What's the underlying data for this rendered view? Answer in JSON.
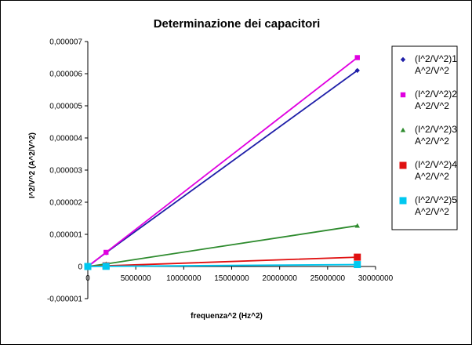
{
  "chart_data": {
    "type": "scatter",
    "title": "Determinazione dei capacitori",
    "xlabel": "frequenza^2 (Hz^2)",
    "ylabel": "I^2/V^2 (A^2/V^2)",
    "xlim": [
      0,
      30000000
    ],
    "ylim": [
      -1e-06,
      7e-06
    ],
    "xticks": [
      0,
      5000000,
      10000000,
      15000000,
      20000000,
      25000000,
      30000000
    ],
    "xtick_labels": [
      "0",
      "5000000",
      "10000000",
      "15000000",
      "20000000",
      "25000000",
      "30000000"
    ],
    "yticks": [
      -1e-06,
      0,
      1e-06,
      2e-06,
      3e-06,
      4e-06,
      5e-06,
      6e-06,
      7e-06
    ],
    "ytick_labels": [
      "-0,000001",
      "0",
      "0,000001",
      "0,000002",
      "0,000003",
      "0,000004",
      "0,000005",
      "0,000006",
      "0,000007"
    ],
    "grid": false,
    "legend_position": "right",
    "series": [
      {
        "name": "(I^2/V^2)1 A^2/V^2",
        "color": "#1f1fa8",
        "marker": "diamond",
        "x": [
          0,
          1900000,
          28100000
        ],
        "y": [
          0,
          4.3e-07,
          6.1e-06
        ]
      },
      {
        "name": "(I^2/V^2)2 A^2/V^2",
        "color": "#e000e0",
        "marker": "square",
        "x": [
          0,
          1900000,
          28100000
        ],
        "y": [
          0,
          4.4e-07,
          6.5e-06
        ]
      },
      {
        "name": "(I^2/V^2)3 A^2/V^2",
        "color": "#2e8b2e",
        "marker": "triangle",
        "x": [
          0,
          1900000,
          28100000
        ],
        "y": [
          0,
          8e-08,
          1.27e-06
        ]
      },
      {
        "name": "(I^2/V^2)4 A^2/V^2",
        "color": "#e01010",
        "marker": "square",
        "x": [
          0,
          1900000,
          28100000
        ],
        "y": [
          0,
          2e-08,
          2.9e-07
        ]
      },
      {
        "name": "(I^2/V^2)5 A^2/V^2",
        "color": "#00c8f0",
        "marker": "square",
        "x": [
          0,
          1900000,
          28100000
        ],
        "y": [
          0,
          5e-09,
          6e-08
        ]
      }
    ]
  }
}
